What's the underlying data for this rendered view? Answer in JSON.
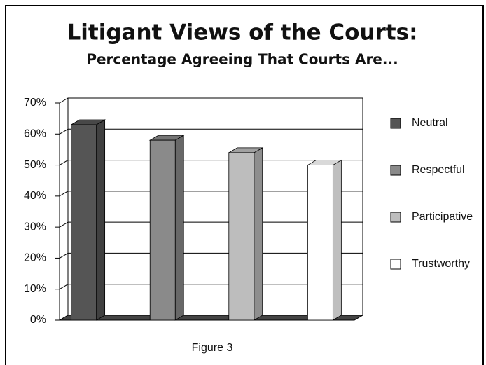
{
  "chart_data": {
    "type": "bar",
    "title": "Litigant Views of the Courts:",
    "subtitle": "Percentage Agreeing That Courts Are...",
    "caption": "Figure 3",
    "categories": [
      null
    ],
    "series": [
      {
        "name": "Neutral",
        "color": "#555555",
        "values": [
          63
        ]
      },
      {
        "name": "Respectful",
        "color": "#8a8a8a",
        "values": [
          58
        ]
      },
      {
        "name": "Participative",
        "color": "#bdbdbd",
        "values": [
          54
        ]
      },
      {
        "name": "Trustworthy",
        "color": "#ffffff",
        "values": [
          50
        ]
      }
    ],
    "ylim": [
      0,
      70
    ],
    "yticks": [
      {
        "value": 0,
        "label": "0%"
      },
      {
        "value": 10,
        "label": "10%"
      },
      {
        "value": 20,
        "label": "20%"
      },
      {
        "value": 30,
        "label": "30%"
      },
      {
        "value": 40,
        "label": "40%"
      },
      {
        "value": 50,
        "label": "50%"
      },
      {
        "value": 60,
        "label": "60%"
      },
      {
        "value": 70,
        "label": "70%"
      }
    ],
    "grid": true,
    "legend": "right"
  }
}
